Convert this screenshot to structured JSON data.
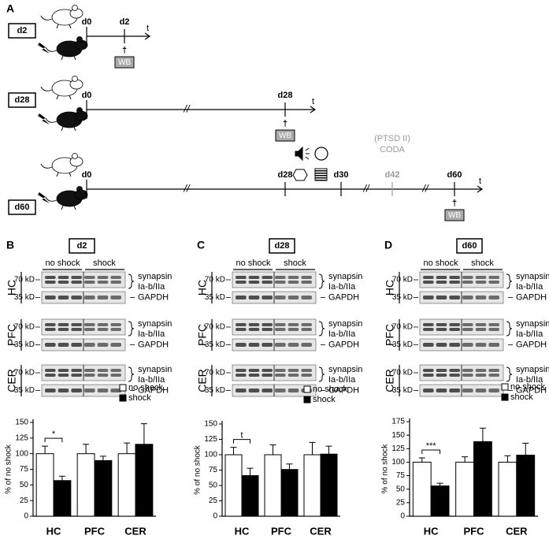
{
  "panel_a": {
    "letter": "A",
    "timelines": [
      {
        "label": "d2",
        "days": [
          "d0",
          "d2"
        ],
        "axis": "t",
        "death": "†",
        "wb": "WB"
      },
      {
        "label": "d28",
        "days": [
          "d0",
          "d28"
        ],
        "axis": "t",
        "death": "†",
        "wb": "WB"
      },
      {
        "label": "d60",
        "days": [
          "d0",
          "d28",
          "d30",
          "d42",
          "d60"
        ],
        "axis": "t",
        "death": "†",
        "wb": "WB",
        "test_name": [
          "(PTSD II)",
          "CODA"
        ]
      }
    ]
  },
  "blot_panels": [
    {
      "letter": "B",
      "day": "d2",
      "groups": [
        "no shock",
        "shock"
      ],
      "regions": [
        {
          "name": "HC",
          "markers": [
            "70 kD",
            "35 kD"
          ],
          "proteins": [
            "synapsin",
            "Ia-b/IIa",
            "GAPDH"
          ]
        },
        {
          "name": "PFC",
          "markers": [
            "70 kD",
            "35 kD"
          ],
          "proteins": [
            "synapsin",
            "Ia-b/IIa",
            "GAPDH"
          ]
        },
        {
          "name": "CER",
          "markers": [
            "70 kD",
            "35 kD"
          ],
          "proteins": [
            "synapsin",
            "Ia-b/IIa",
            "GAPDH"
          ]
        }
      ]
    },
    {
      "letter": "C",
      "day": "d28",
      "groups": [
        "no shock",
        "shock"
      ],
      "regions": [
        {
          "name": "HC",
          "markers": [
            "70 kD",
            "35 kD"
          ],
          "proteins": [
            "synapsin",
            "Ia-b/IIa",
            "GAPDH"
          ]
        },
        {
          "name": "PFC",
          "markers": [
            "70 kD",
            "35 kD"
          ],
          "proteins": [
            "synapsin",
            "Ia-b/IIa",
            "GAPDH"
          ]
        },
        {
          "name": "CER",
          "markers": [
            "70 kD",
            "35 kD"
          ],
          "proteins": [
            "synapsin",
            "Ia-b/IIa",
            "GAPDH"
          ]
        }
      ]
    },
    {
      "letter": "D",
      "day": "d60",
      "groups": [
        "no shock",
        "shock"
      ],
      "regions": [
        {
          "name": "HC",
          "markers": [
            "70 kD",
            "35 kD"
          ],
          "proteins": [
            "synapsin",
            "Ia-b/IIa",
            "GAPDH"
          ]
        },
        {
          "name": "PFC",
          "markers": [
            "70 kD",
            "35 kD"
          ],
          "proteins": [
            "synapsin",
            "Ia-b/IIa",
            "GAPDH"
          ]
        },
        {
          "name": "CER",
          "markers": [
            "70 kD",
            "35 kD"
          ],
          "proteins": [
            "synapsin",
            "Ia-b/IIa",
            "GAPDH"
          ]
        }
      ]
    }
  ],
  "chart_data": [
    {
      "type": "bar",
      "ylabel": "% of no shock",
      "categories": [
        "HC",
        "PFC",
        "CER"
      ],
      "series": [
        {
          "name": "no shock",
          "color": "#ffffff",
          "values": [
            100,
            100,
            100
          ],
          "errors": [
            12,
            15,
            17
          ]
        },
        {
          "name": "shock",
          "color": "#000000",
          "values": [
            57,
            89,
            115
          ],
          "errors": [
            7,
            7,
            33
          ]
        }
      ],
      "ylim": [
        0,
        150
      ],
      "yticks": [
        0,
        25,
        50,
        75,
        100,
        125,
        150
      ],
      "significance": "*"
    },
    {
      "type": "bar",
      "ylabel": "% of no shock",
      "categories": [
        "HC",
        "PFC",
        "CER"
      ],
      "series": [
        {
          "name": "no shock",
          "color": "#ffffff",
          "values": [
            100,
            100,
            100
          ],
          "errors": [
            12,
            16,
            20
          ]
        },
        {
          "name": "shock",
          "color": "#000000",
          "values": [
            66,
            76,
            101
          ],
          "errors": [
            12,
            9,
            13
          ]
        }
      ],
      "ylim": [
        0,
        150
      ],
      "yticks": [
        0,
        25,
        50,
        75,
        100,
        125,
        150
      ],
      "significance": "t"
    },
    {
      "type": "bar",
      "ylabel": "% of no shock",
      "categories": [
        "HC",
        "PFC",
        "CER"
      ],
      "series": [
        {
          "name": "no shock",
          "color": "#ffffff",
          "values": [
            100,
            100,
            100
          ],
          "errors": [
            8,
            10,
            12
          ]
        },
        {
          "name": "shock",
          "color": "#000000",
          "values": [
            56,
            138,
            113
          ],
          "errors": [
            5,
            25,
            22
          ]
        }
      ],
      "ylim": [
        0,
        175
      ],
      "yticks": [
        0,
        25,
        50,
        75,
        100,
        125,
        150,
        175
      ],
      "significance": "***"
    }
  ]
}
